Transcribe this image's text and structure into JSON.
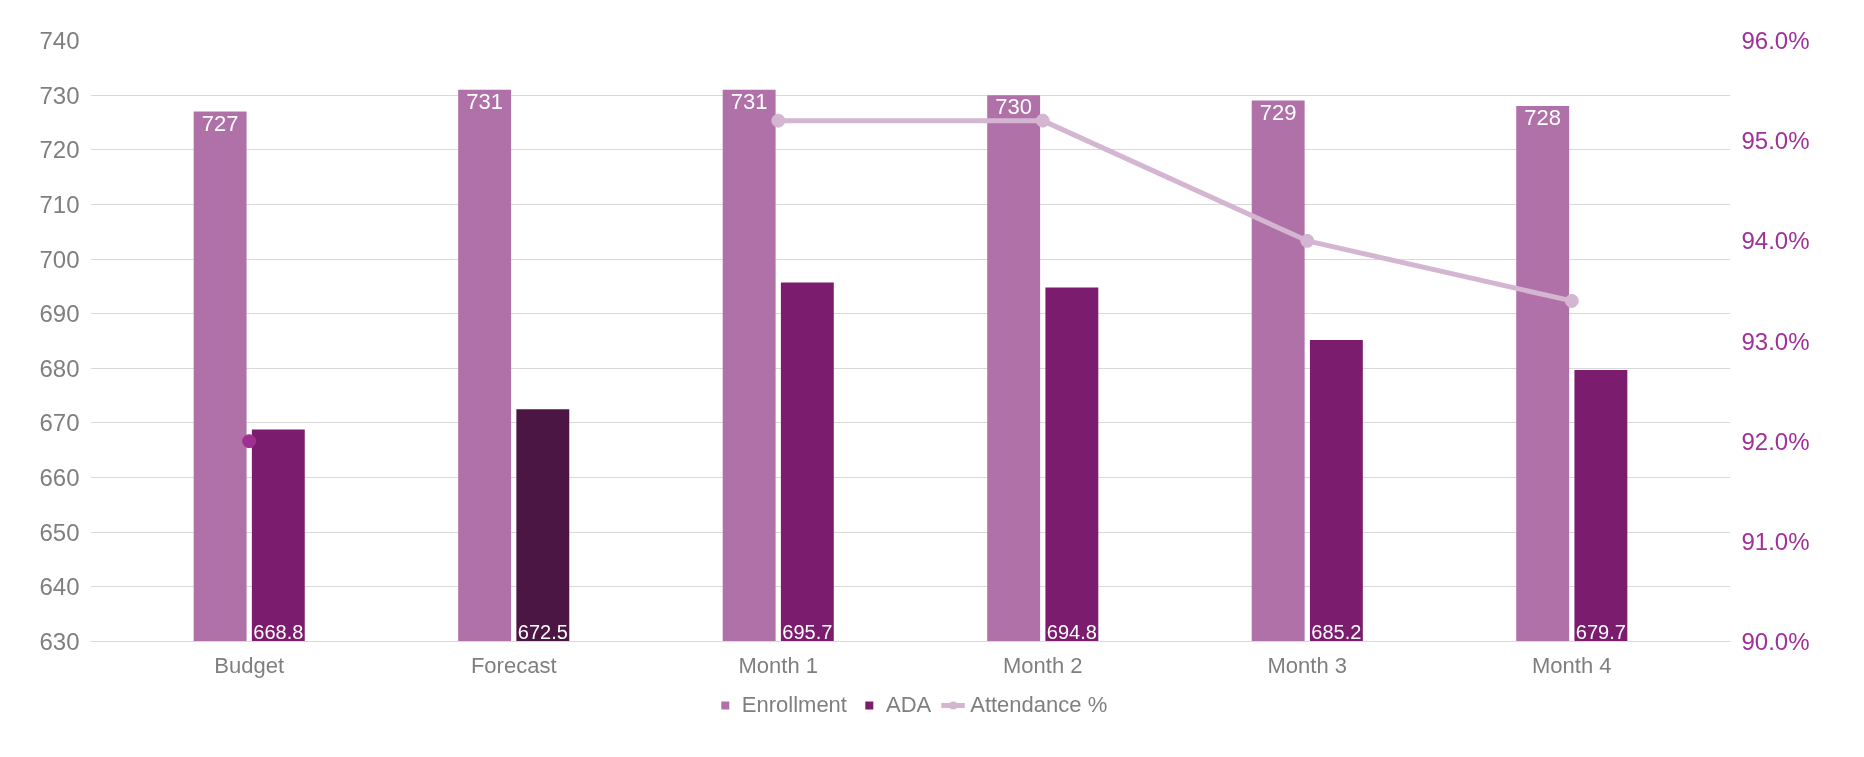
{
  "chart_data": {
    "type": "bar",
    "categories": [
      "Budget",
      "Forecast",
      "Month 1",
      "Month 2",
      "Month 3",
      "Month 4"
    ],
    "series": [
      {
        "name": "Enrollment",
        "color": "#b070a8",
        "values": [
          727,
          731,
          731,
          730,
          729,
          728
        ],
        "value_labels": [
          "727",
          "731",
          "731",
          "730",
          "729",
          "728"
        ]
      },
      {
        "name": "ADA",
        "colors": [
          "#7b1c6e",
          "#4b1644",
          "#7b1c6e",
          "#7b1c6e",
          "#7b1c6e",
          "#7b1c6e"
        ],
        "values": [
          668.8,
          672.5,
          695.7,
          694.8,
          685.2,
          679.7
        ],
        "value_labels": [
          "668.8",
          "672.5",
          "695.7",
          "694.8",
          "685.2",
          "679.7"
        ]
      },
      {
        "name": "Attendance %",
        "type": "line",
        "axis": "y2",
        "color": "#d4b5d2",
        "colors": [
          "#a0308f",
          "#d4b5d2",
          "#d4b5d2",
          "#d4b5d2",
          "#d4b5d2",
          "#d4b5d2"
        ],
        "values": [
          92.0,
          null,
          95.2,
          95.2,
          94.0,
          93.4
        ]
      }
    ],
    "ylim": [
      630,
      740
    ],
    "yticks": [
      630,
      640,
      650,
      660,
      670,
      680,
      690,
      700,
      710,
      720,
      730,
      740
    ],
    "y2lim": [
      90,
      96
    ],
    "y2ticks": [
      {
        "value": 90,
        "label": "90.0%"
      },
      {
        "value": 91,
        "label": "91.0%"
      },
      {
        "value": 92,
        "label": "92.0%"
      },
      {
        "value": 93,
        "label": "93.0%"
      },
      {
        "value": 94,
        "label": "94.0%"
      },
      {
        "value": 95,
        "label": "95.0%"
      },
      {
        "value": 96,
        "label": "96.0%"
      }
    ],
    "grid": "y",
    "legend": "bottom",
    "marker": "circle"
  }
}
